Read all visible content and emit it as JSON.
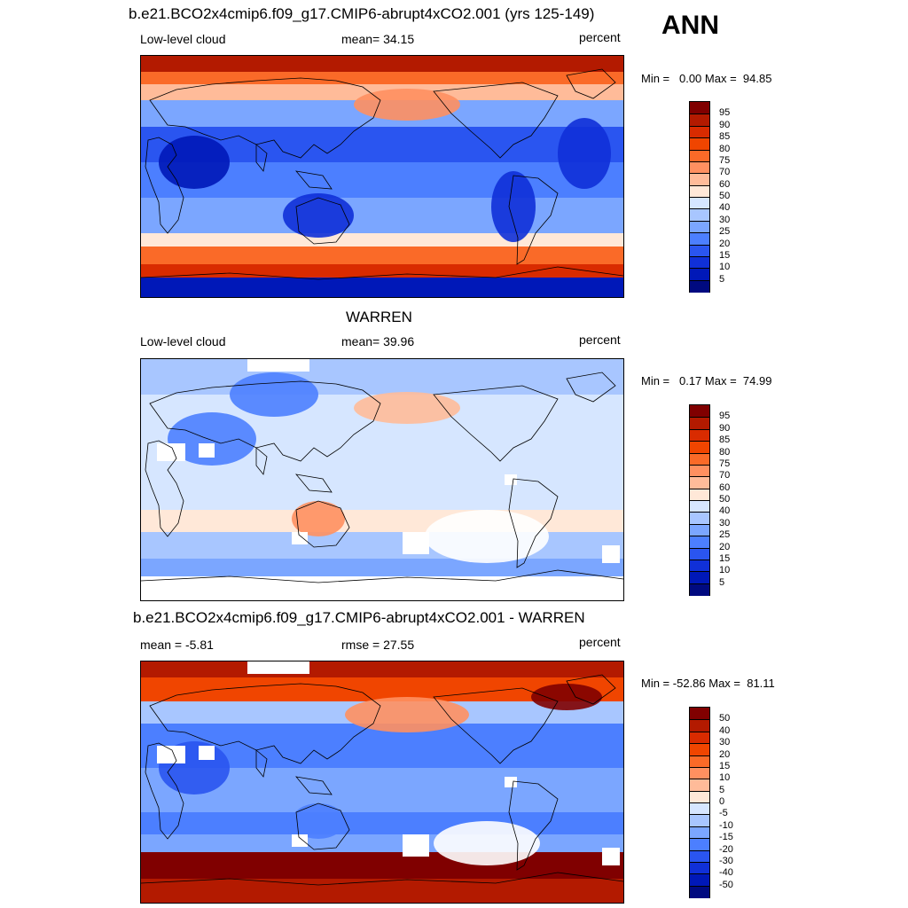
{
  "season": "ANN",
  "panels": [
    {
      "title": "b.e21.BCO2x4cmip6.f09_g17.CMIP6-abrupt4xCO2.001 (yrs 125-149)",
      "left_label": "Low-level cloud",
      "mid_label": "mean=  34.15",
      "units": "percent",
      "minmax": "Min =   0.00 Max =  94.85",
      "colorbar_labels": [
        "95",
        "90",
        "85",
        "80",
        "75",
        "70",
        "60",
        "50",
        "40",
        "30",
        "25",
        "20",
        "15",
        "10",
        "5"
      ],
      "colors": [
        "#800000",
        "#b31a00",
        "#d92b00",
        "#f04500",
        "#fa6a28",
        "#ff9060",
        "#ffbb99",
        "#ffe8d8",
        "#d6e6ff",
        "#a8c6ff",
        "#7ba6ff",
        "#4c7fff",
        "#2a55f0",
        "#1030d8",
        "#0018b8",
        "#000a80"
      ]
    },
    {
      "title": "WARREN",
      "left_label": "Low-level cloud",
      "mid_label": "mean=  39.96",
      "units": "percent",
      "minmax": "Min =   0.17 Max =  74.99",
      "colorbar_labels": [
        "95",
        "90",
        "85",
        "80",
        "75",
        "70",
        "60",
        "50",
        "40",
        "30",
        "25",
        "20",
        "15",
        "10",
        "5"
      ],
      "colors": [
        "#800000",
        "#b31a00",
        "#d92b00",
        "#f04500",
        "#fa6a28",
        "#ff9060",
        "#ffbb99",
        "#ffe8d8",
        "#d6e6ff",
        "#a8c6ff",
        "#7ba6ff",
        "#4c7fff",
        "#2a55f0",
        "#1030d8",
        "#0018b8",
        "#000a80"
      ]
    },
    {
      "title": "b.e21.BCO2x4cmip6.f09_g17.CMIP6-abrupt4xCO2.001 - WARREN",
      "left_label": "mean =  -5.81",
      "mid_label": "rmse =  27.55",
      "units": "percent",
      "minmax": "Min = -52.86 Max =  81.11",
      "colorbar_labels": [
        "50",
        "40",
        "30",
        "20",
        "15",
        "10",
        "5",
        "0",
        "-5",
        "-10",
        "-15",
        "-20",
        "-30",
        "-40",
        "-50"
      ],
      "colors": [
        "#800000",
        "#b31a00",
        "#d92b00",
        "#f04500",
        "#fa6a28",
        "#ff9060",
        "#ffbb99",
        "#ffe8d8",
        "#d6e6ff",
        "#a8c6ff",
        "#7ba6ff",
        "#4c7fff",
        "#2a55f0",
        "#1030d8",
        "#0018b8",
        "#000a80"
      ]
    }
  ]
}
